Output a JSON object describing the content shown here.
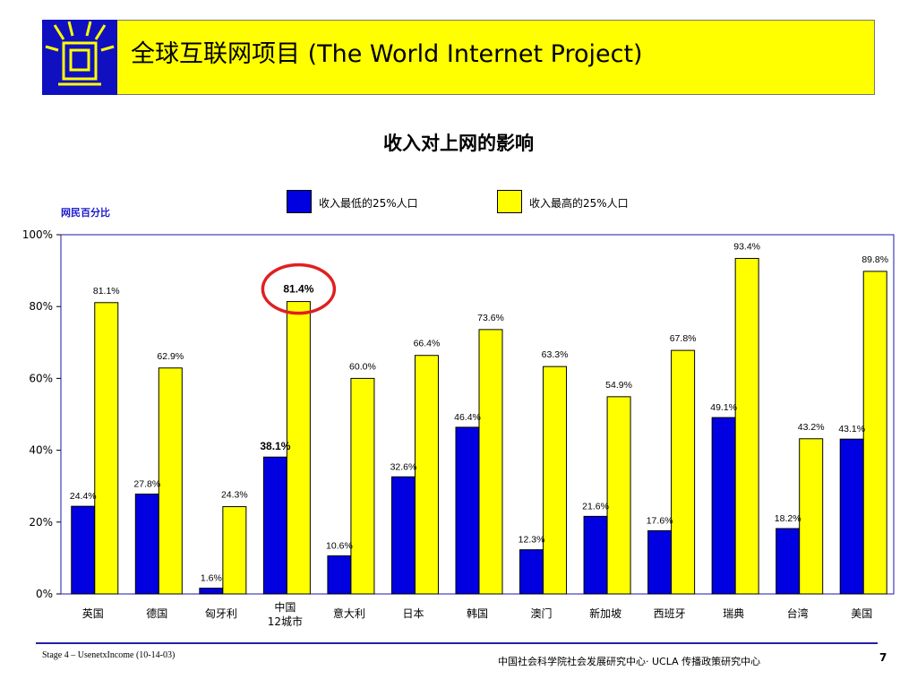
{
  "header": {
    "title": "全球互联网项目 (The World Internet Project)",
    "bar_color": "#ffff00",
    "logo_icon": "globe-window-logo-icon"
  },
  "chart_data": {
    "type": "bar",
    "title": "收入对上网的影响",
    "ylabel": "网民百分比",
    "xlabel": "",
    "ylim": [
      0,
      100
    ],
    "yticks": [
      "0%",
      "20%",
      "40%",
      "60%",
      "80%",
      "100%"
    ],
    "grid": false,
    "legend_position": "top",
    "categories": [
      "英国",
      "德国",
      "匈牙利",
      "中国\n12城市",
      "意大利",
      "日本",
      "韩国",
      "澳门",
      "新加坡",
      "西班牙",
      "瑞典",
      "台湾",
      "美国"
    ],
    "series": [
      {
        "name": "收入最低的25%人口",
        "color": "#0000e0",
        "values": [
          24.4,
          27.8,
          1.6,
          38.1,
          10.6,
          32.6,
          46.4,
          12.3,
          21.6,
          17.6,
          49.1,
          18.2,
          43.1
        ],
        "labels": [
          "24.4%",
          "27.8%",
          "1.6%",
          "38.1%",
          "10.6%",
          "32.6%",
          "46.4%",
          "12.3%",
          "21.6%",
          "17.6%",
          "49.1%",
          "18.2%",
          "43.1%"
        ]
      },
      {
        "name": "收入最高的25%人口",
        "color": "#ffff00",
        "values": [
          81.1,
          62.9,
          24.3,
          81.4,
          60.0,
          66.4,
          73.6,
          63.3,
          54.9,
          67.8,
          93.4,
          43.2,
          89.8
        ],
        "labels": [
          "81.1%",
          "62.9%",
          "24.3%",
          "81.4%",
          "60.0%",
          "66.4%",
          "73.6%",
          "63.3%",
          "54.9%",
          "67.8%",
          "93.4%",
          "43.2%",
          "89.8%"
        ]
      }
    ],
    "highlight": {
      "category_index": 3,
      "series_index": 1,
      "outline_color": "#e02020"
    }
  },
  "footer": {
    "left": "Stage 4 – UsenetxIncome (10-14-03)",
    "center": "中国社会科学院社会发展研究中心· UCLA 传播政策研究中心",
    "page": "7",
    "line_color": "#2222aa"
  }
}
